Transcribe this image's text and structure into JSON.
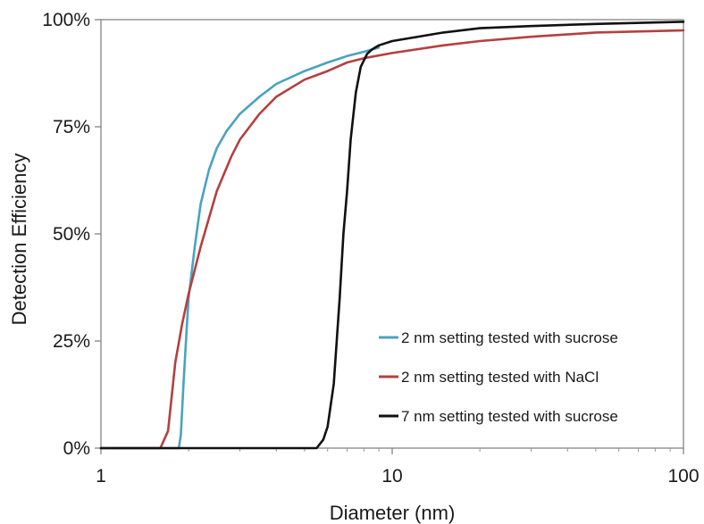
{
  "chart_data": {
    "type": "line",
    "title": "",
    "xlabel": "Diameter (nm)",
    "ylabel": "Detection Efficiency",
    "xscale": "log",
    "xlim": [
      1,
      100
    ],
    "ylim": [
      0,
      100
    ],
    "x_ticks": [
      1,
      10,
      100
    ],
    "x_tick_labels": [
      "1",
      "10",
      "100"
    ],
    "y_ticks": [
      0,
      25,
      50,
      75,
      100
    ],
    "y_tick_labels": [
      "0%",
      "25%",
      "50%",
      "75%",
      "100%"
    ],
    "grid": false,
    "legend_position": "bottom-right",
    "series": [
      {
        "name": "2 nm setting tested with sucrose",
        "color": "#4aa3bf",
        "x": [
          1,
          1.85,
          1.88,
          1.92,
          1.97,
          2.0,
          2.1,
          2.2,
          2.35,
          2.5,
          2.7,
          3.0,
          3.5,
          4.0,
          5.0,
          6.0,
          7.0,
          8.0,
          9.0
        ],
        "y": [
          0,
          0,
          3,
          15,
          28,
          35,
          47,
          57,
          65,
          70,
          74,
          78,
          82,
          85,
          88,
          90,
          91.5,
          92.5,
          93.5
        ]
      },
      {
        "name": "2 nm setting tested with NaCl",
        "color": "#b5403f",
        "x": [
          1,
          1.6,
          1.7,
          1.8,
          1.9,
          2.0,
          2.2,
          2.5,
          2.8,
          3.0,
          3.5,
          4.0,
          5.0,
          6.0,
          7.0,
          8.0,
          10,
          15,
          20,
          30,
          50,
          100
        ],
        "y": [
          0,
          0,
          4,
          20,
          29,
          36,
          47,
          60,
          68,
          72,
          78,
          82,
          86,
          88,
          90,
          91,
          92.2,
          94,
          95,
          96,
          97,
          97.5
        ]
      },
      {
        "name": "7 nm setting tested with sucrose",
        "color": "#111111",
        "x": [
          1,
          5.5,
          5.8,
          6.0,
          6.3,
          6.6,
          6.8,
          7.0,
          7.2,
          7.5,
          7.8,
          8.2,
          8.5,
          9.0,
          10,
          15,
          20,
          30,
          50,
          100
        ],
        "y": [
          0,
          0,
          2,
          5,
          15,
          35,
          50,
          60,
          72,
          83,
          89,
          92,
          93,
          94,
          95,
          97,
          98,
          98.5,
          99,
          99.5
        ]
      }
    ]
  }
}
